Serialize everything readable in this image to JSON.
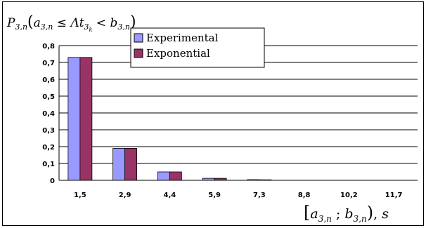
{
  "colors": {
    "series_1": "#9999ff",
    "series_2": "#993366",
    "gridline": "#000000",
    "background": "#ffffff"
  },
  "chart_data": {
    "type": "bar",
    "title": "",
    "ylabel_formula": "P₃,ₙ(a₃,ₙ ≤ Λt₃ₖ < b₃,ₙ)",
    "xlabel_formula": "[a₃,ₙ ; b₃,ₙ), s",
    "categories": [
      "1,5",
      "2,9",
      "4,4",
      "5,9",
      "7,3",
      "8,8",
      "10,2",
      "11,7"
    ],
    "y_ticks": [
      "0",
      "0,1",
      "0,2",
      "0,3",
      "0,4",
      "0,5",
      "0,6",
      "0,7",
      "0,8"
    ],
    "ylim": [
      0,
      0.8
    ],
    "grid": "horizontal major gridlines",
    "legend_position": "top-center",
    "series": [
      {
        "name": "Experimental",
        "values": [
          0.73,
          0.19,
          0.05,
          0.012,
          0.004,
          0.0,
          0.0,
          0.0
        ]
      },
      {
        "name": "Exponential",
        "values": [
          0.73,
          0.19,
          0.05,
          0.012,
          0.003,
          0.0,
          0.0,
          0.0
        ]
      }
    ]
  }
}
